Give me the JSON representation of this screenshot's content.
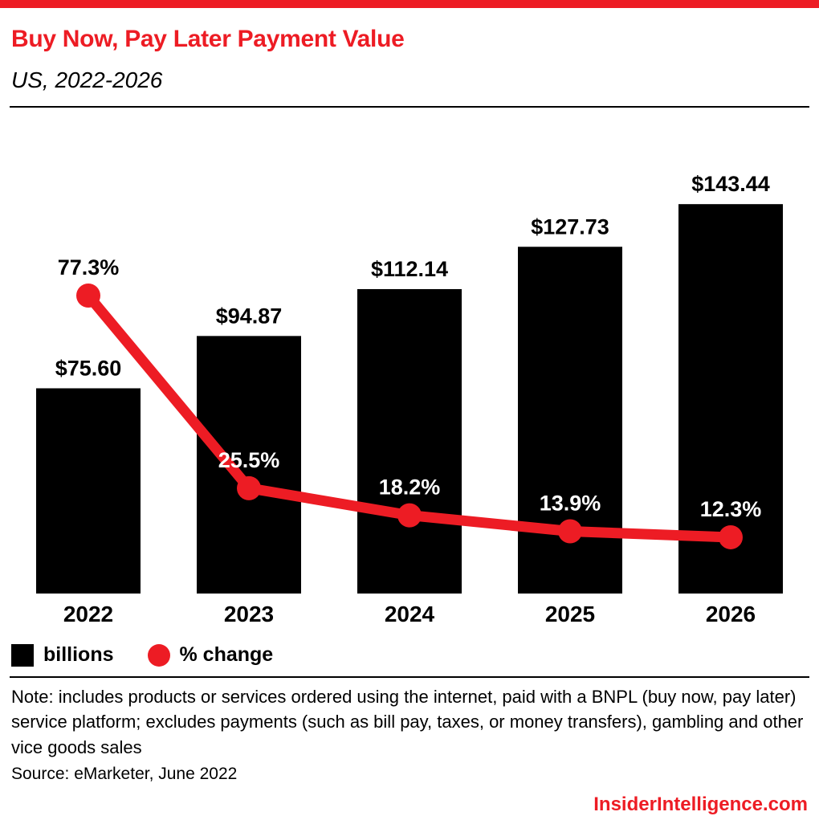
{
  "header": {
    "title": "Buy Now, Pay Later Payment Value",
    "subtitle": "US, 2022-2026"
  },
  "chart_data": {
    "type": "bar+line",
    "categories": [
      "2022",
      "2023",
      "2024",
      "2025",
      "2026"
    ],
    "series": [
      {
        "name": "billions",
        "type": "bar",
        "values": [
          75.6,
          94.87,
          112.14,
          127.73,
          143.44
        ],
        "labels": [
          "$75.60",
          "$94.87",
          "$112.14",
          "$127.73",
          "$143.44"
        ],
        "color": "#000000"
      },
      {
        "name": "% change",
        "type": "line",
        "values": [
          77.3,
          25.5,
          18.2,
          13.9,
          12.3
        ],
        "labels": [
          "77.3%",
          "25.5%",
          "18.2%",
          "13.9%",
          "12.3%"
        ],
        "color": "#ED1C24",
        "value_label_colors": [
          "#000000",
          "#ffffff",
          "#ffffff",
          "#ffffff",
          "#ffffff"
        ]
      }
    ],
    "legend": [
      {
        "label": "billions",
        "swatch": "square",
        "color": "#000000"
      },
      {
        "label": "% change",
        "swatch": "circle",
        "color": "#ED1C24"
      }
    ],
    "layout_hints": {
      "bar_axis_range": [
        0,
        150
      ],
      "grid": false,
      "legend_position": "bottom-left",
      "value_labels": "above"
    }
  },
  "footer": {
    "note": "Note: includes products or services ordered using the internet, paid with a BNPL (buy now, pay later) service platform; excludes payments (such as bill pay, taxes, or money transfers), gambling and other vice goods sales",
    "source": "Source: eMarketer, June 2022",
    "brand": "InsiderIntelligence.com"
  },
  "colors": {
    "accent": "#ED1C24",
    "bar": "#000000",
    "background": "#ffffff"
  }
}
